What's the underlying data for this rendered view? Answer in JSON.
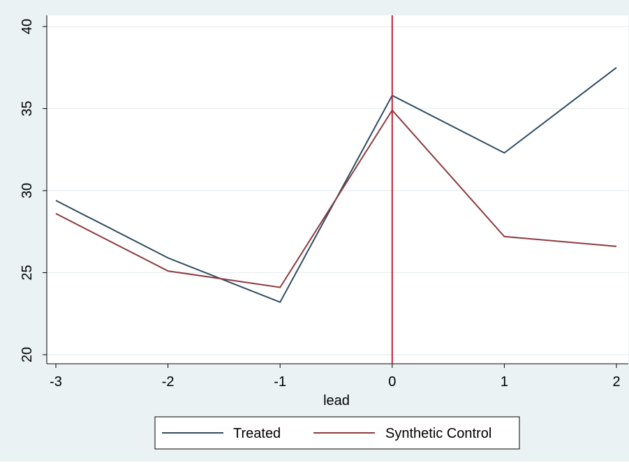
{
  "chart_data": {
    "type": "line",
    "title": "",
    "xlabel": "lead",
    "ylabel": "",
    "xlim": [
      -3,
      2
    ],
    "ylim": [
      20,
      40
    ],
    "x_ticks": [
      -3,
      -2,
      -1,
      0,
      1,
      2
    ],
    "y_ticks": [
      20,
      25,
      30,
      35,
      40
    ],
    "x_tick_labels": [
      "-3",
      "-2",
      "-1",
      "0",
      "1",
      "2"
    ],
    "y_tick_labels": [
      "20",
      "25",
      "30",
      "35",
      "40"
    ],
    "grid": true,
    "vline": {
      "x": 0,
      "color": "#c1203b"
    },
    "legend": {
      "position": "bottom"
    },
    "series": [
      {
        "name": "Treated",
        "color": "#2e4a62",
        "x": [
          -3,
          -2,
          -1,
          0,
          1,
          2
        ],
        "y": [
          29.4,
          25.9,
          23.2,
          35.8,
          32.3,
          37.5
        ]
      },
      {
        "name": "Synthetic Control",
        "color": "#8b3a3f",
        "x": [
          -3,
          -2,
          -1,
          0,
          1,
          2
        ],
        "y": [
          28.6,
          25.1,
          24.1,
          34.9,
          27.2,
          26.6
        ]
      }
    ]
  }
}
